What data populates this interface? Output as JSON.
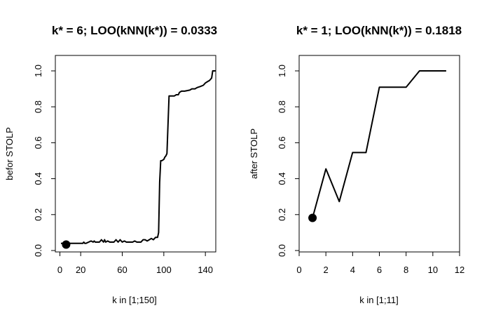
{
  "chart_data": [
    {
      "type": "line",
      "title": "k* = 6; LOO(kNN(k*)) = 0.0333",
      "xlabel": "k in [1;150]",
      "ylabel": "befor STOLP",
      "xlim": [
        1,
        150
      ],
      "ylim": [
        0,
        1
      ],
      "xticks": [
        0,
        20,
        60,
        100,
        140
      ],
      "yticks": [
        "0.0",
        "0.2",
        "0.4",
        "0.6",
        "0.8",
        "1.0"
      ],
      "highlight": {
        "x": 6,
        "y": 0.0333
      },
      "x": [
        1,
        10,
        20,
        22,
        23,
        24,
        25,
        30,
        32,
        33,
        34,
        36,
        38,
        40,
        42,
        43,
        44,
        46,
        48,
        50,
        52,
        54,
        56,
        58,
        60,
        62,
        64,
        66,
        68,
        70,
        72,
        74,
        76,
        78,
        80,
        82,
        84,
        86,
        88,
        90,
        92,
        94,
        95,
        96,
        97,
        98,
        100,
        101,
        102,
        103,
        104,
        105,
        106,
        110,
        112,
        114,
        115,
        117,
        120,
        125,
        127,
        130,
        132,
        135,
        138,
        140,
        142,
        144,
        146,
        147,
        148,
        150
      ],
      "y": [
        0.04,
        0.04,
        0.04,
        0.04,
        0.047,
        0.04,
        0.04,
        0.053,
        0.047,
        0.053,
        0.047,
        0.047,
        0.047,
        0.06,
        0.047,
        0.06,
        0.047,
        0.053,
        0.047,
        0.047,
        0.047,
        0.06,
        0.047,
        0.06,
        0.047,
        0.053,
        0.047,
        0.047,
        0.047,
        0.047,
        0.053,
        0.047,
        0.047,
        0.047,
        0.06,
        0.06,
        0.053,
        0.06,
        0.067,
        0.06,
        0.073,
        0.073,
        0.1,
        0.38,
        0.5,
        0.5,
        0.507,
        0.52,
        0.527,
        0.54,
        0.7,
        0.86,
        0.86,
        0.86,
        0.867,
        0.867,
        0.88,
        0.887,
        0.887,
        0.893,
        0.9,
        0.9,
        0.907,
        0.913,
        0.92,
        0.933,
        0.94,
        0.947,
        0.96,
        1.0,
        1.0,
        1.0
      ]
    },
    {
      "type": "line",
      "title": "k* = 1; LOO(kNN(k*)) = 0.1818",
      "xlabel": "k in [1;11]",
      "ylabel": "after STOLP",
      "xlim": [
        0,
        12
      ],
      "ylim": [
        0,
        1
      ],
      "xticks": [
        0,
        2,
        4,
        6,
        8,
        10,
        12
      ],
      "yticks": [
        "0.0",
        "0.2",
        "0.4",
        "0.6",
        "0.8",
        "1.0"
      ],
      "highlight": {
        "x": 1,
        "y": 0.1818
      },
      "x": [
        1,
        2,
        3,
        4,
        5,
        6,
        7,
        8,
        9,
        10,
        11
      ],
      "y": [
        0.1818,
        0.4545,
        0.2727,
        0.5455,
        0.5455,
        0.9091,
        0.9091,
        0.9091,
        1.0,
        1.0,
        1.0
      ]
    }
  ]
}
